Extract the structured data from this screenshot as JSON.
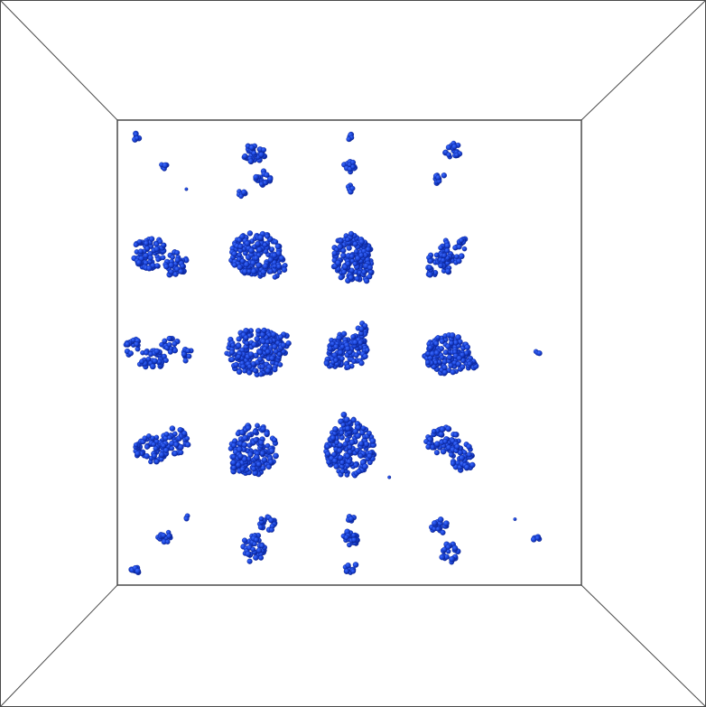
{
  "scene": {
    "view": "3d-perspective-box",
    "background_color": "#ffffff",
    "frame_line_color": "#4a4a4a",
    "particle_color": "#1a44d6",
    "particle_shadow_color": "#0a2190",
    "grid_columns": 5,
    "grid_rows": 5,
    "particle_clusters_visible": true
  }
}
